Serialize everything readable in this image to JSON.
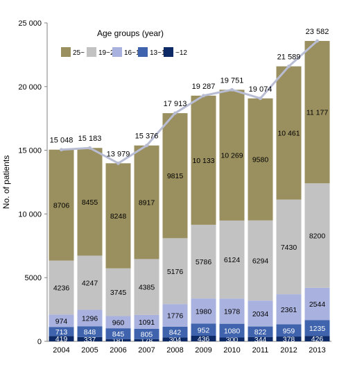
{
  "chart_data": {
    "type": "bar",
    "stacked": true,
    "ylabel": "No. of patients",
    "ylim": [
      0,
      25000
    ],
    "yticks": [
      0,
      5000,
      10000,
      15000,
      20000,
      25000
    ],
    "ytick_labels": [
      "0",
      "5000",
      "10 000",
      "15 000",
      "20 000",
      "25 000"
    ],
    "legend_title": "Age groups (year)",
    "legend_position": "top-left",
    "categories": [
      "2004",
      "2005",
      "2006",
      "2007",
      "2008",
      "2009",
      "2010",
      "2011",
      "2012",
      "2013"
    ],
    "series": [
      {
        "name": "~12",
        "color": "#0d2a66",
        "label_color": "#ffffff",
        "values": [
          419,
          337,
          181,
          178,
          304,
          436,
          300,
          344,
          378,
          426
        ],
        "labels": [
          "419",
          "337",
          "181",
          "178",
          "304",
          "436",
          "300",
          "344",
          "378",
          "426"
        ]
      },
      {
        "name": "13~15",
        "color": "#3f63ad",
        "label_color": "#ffffff",
        "values": [
          713,
          848,
          845,
          805,
          842,
          952,
          1080,
          822,
          959,
          1235
        ],
        "labels": [
          "713",
          "848",
          "845",
          "805",
          "842",
          "952",
          "1080",
          "822",
          "959",
          "1235"
        ]
      },
      {
        "name": "16~18",
        "color": "#a9b2de",
        "label_color": "#000000",
        "values": [
          974,
          1296,
          960,
          1091,
          1776,
          1980,
          1978,
          2034,
          2361,
          2544
        ],
        "labels": [
          "974",
          "1296",
          "960",
          "1091",
          "1776",
          "1980",
          "1978",
          "2034",
          "2361",
          "2544"
        ]
      },
      {
        "name": "19~24",
        "color": "#c2c2c2",
        "label_color": "#000000",
        "values": [
          4236,
          4247,
          3745,
          4385,
          5176,
          5786,
          6124,
          6294,
          7430,
          8200
        ],
        "labels": [
          "4236",
          "4247",
          "3745",
          "4385",
          "5176",
          "5786",
          "6124",
          "6294",
          "7430",
          "8200"
        ]
      },
      {
        "name": "25~",
        "color": "#9a8f5e",
        "label_color": "#000000",
        "values": [
          8706,
          8455,
          8248,
          8917,
          9815,
          10133,
          10269,
          9580,
          10461,
          11177
        ],
        "labels": [
          "8706",
          "8455",
          "8248",
          "8917",
          "9815",
          "10 133",
          "10 269",
          "9580",
          "10 461",
          "11 177"
        ]
      }
    ],
    "legend_order": [
      "25~",
      "19~24",
      "16~18",
      "13~15",
      "~12"
    ],
    "total_line": {
      "color": "#b9bdd4",
      "values": [
        15048,
        15183,
        13979,
        15376,
        17913,
        19287,
        19751,
        19074,
        21589,
        23582
      ],
      "labels": [
        "15 048",
        "15 183",
        "13 979",
        "15 376",
        "17 913",
        "19 287",
        "19 751",
        "19 074",
        "21 589",
        "23 582"
      ]
    }
  }
}
